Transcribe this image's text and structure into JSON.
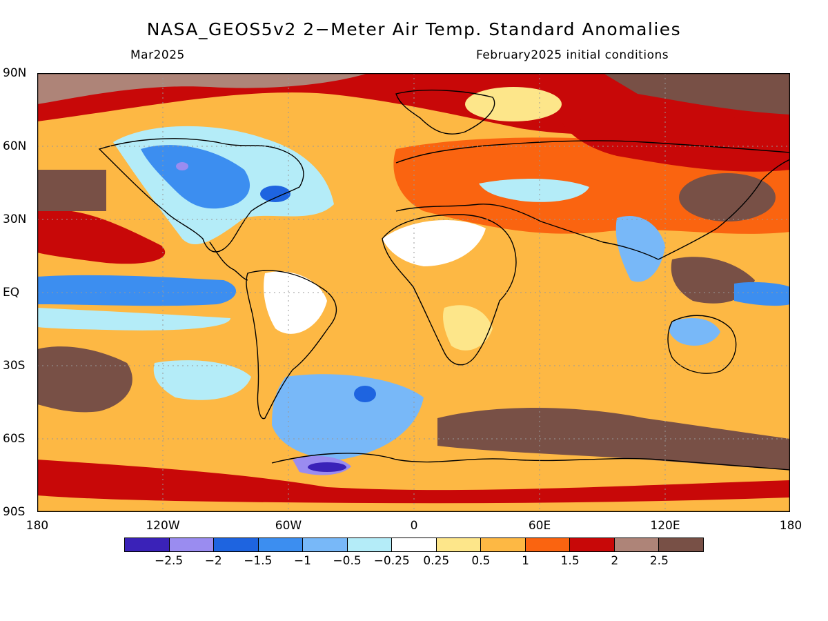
{
  "title": "NASA_GEOS5v2 2−Meter Air Temp. Standard Anomalies",
  "subtitle_left": "Mar2025",
  "subtitle_right": "February2025 initial conditions",
  "lat_labels": [
    "90N",
    "60N",
    "30N",
    "EQ",
    "30S",
    "60S",
    "90S"
  ],
  "lon_labels": [
    "180",
    "120W",
    "60W",
    "0",
    "60E",
    "120E",
    "180"
  ],
  "colorbar": {
    "colors": [
      "#3a22b8",
      "#9a8cf0",
      "#1e64e0",
      "#3c8ef0",
      "#78b8f8",
      "#b4ecf8",
      "#ffffff",
      "#fde68a",
      "#fdb844",
      "#fa6410",
      "#c80808",
      "#ae8478",
      "#785046"
    ],
    "labels": [
      "−2.5",
      "−2",
      "−1.5",
      "−1",
      "−0.5",
      "−0.25",
      "0.25",
      "0.5",
      "1",
      "1.5",
      "2",
      "2.5"
    ]
  },
  "map": {
    "projection": "cylindrical equidistant",
    "lon_range": [
      -180,
      180
    ],
    "lat_range": [
      -90,
      90
    ],
    "fill_colors": {
      "background": "#fdb844",
      "warm_strong": "#c80808",
      "warm_max": "#785046",
      "warm_light": "#ae8478",
      "cool": "#3c8ef0",
      "cool_light": "#b4ecf8",
      "neutral": "#ffffff",
      "coast": "#000000"
    }
  }
}
